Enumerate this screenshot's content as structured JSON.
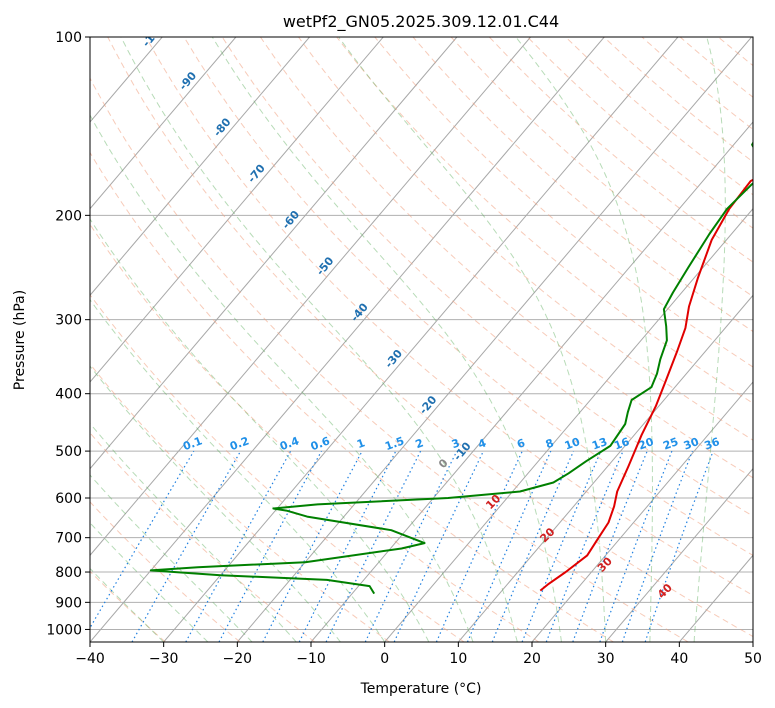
{
  "chart_data": {
    "type": "line",
    "title": "wetPf2_GN05.2025.309.12.01.C44",
    "xlabel": "Temperature (°C)",
    "ylabel": "Pressure (hPa)",
    "xlim": [
      -40,
      50
    ],
    "ylim": [
      1050,
      100
    ],
    "x_ticks": [
      -40,
      -30,
      -20,
      -10,
      0,
      10,
      20,
      30,
      40,
      50
    ],
    "x_tick_labels": [
      "−40",
      "−30",
      "−20",
      "−10",
      "0",
      "10",
      "20",
      "30",
      "40",
      "50"
    ],
    "y_ticks": [
      100,
      200,
      300,
      400,
      500,
      600,
      700,
      800,
      900,
      1000
    ],
    "y_tick_labels": [
      "100",
      "200",
      "300",
      "400",
      "500",
      "600",
      "700",
      "800",
      "900",
      "1000"
    ],
    "series": [
      {
        "name": "temperature",
        "color": "#e00000",
        "points": [
          [
            15.2,
            860
          ],
          [
            15.5,
            840
          ],
          [
            16.5,
            800
          ],
          [
            17.5,
            750
          ],
          [
            17.0,
            700
          ],
          [
            16.6,
            660
          ],
          [
            15.5,
            620
          ],
          [
            14.2,
            585
          ],
          [
            12.8,
            530
          ],
          [
            11.0,
            470
          ],
          [
            9.6,
            420
          ],
          [
            8.0,
            380
          ],
          [
            6.2,
            340
          ],
          [
            4.6,
            310
          ],
          [
            2.6,
            285
          ],
          [
            0.5,
            255
          ],
          [
            -2.0,
            220
          ],
          [
            -3.2,
            195
          ],
          [
            -3.5,
            175
          ],
          [
            -1.0,
            165
          ],
          [
            4.0,
            158
          ],
          [
            7.5,
            152
          ],
          [
            10.0,
            142
          ],
          [
            12.5,
            130
          ],
          [
            14.5,
            120
          ],
          [
            17.0,
            110
          ],
          [
            20.5,
            100
          ]
        ]
      },
      {
        "name": "dewpoint",
        "color": "#008000",
        "points": [
          [
            -7.0,
            870
          ],
          [
            -8.5,
            845
          ],
          [
            -15.0,
            825
          ],
          [
            -30.0,
            810
          ],
          [
            -40.0,
            795
          ],
          [
            -34.0,
            785
          ],
          [
            -20.0,
            770
          ],
          [
            -8.5,
            730
          ],
          [
            -6.0,
            715
          ],
          [
            -12.0,
            680
          ],
          [
            -25.0,
            645
          ],
          [
            -28.5,
            630
          ],
          [
            -30.5,
            625
          ],
          [
            -25.0,
            615
          ],
          [
            -8.0,
            600
          ],
          [
            1.0,
            585
          ],
          [
            4.5,
            565
          ],
          [
            5.5,
            545
          ],
          [
            6.5,
            520
          ],
          [
            8.0,
            490
          ],
          [
            7.5,
            450
          ],
          [
            6.5,
            430
          ],
          [
            5.6,
            410
          ],
          [
            6.8,
            390
          ],
          [
            6.0,
            370
          ],
          [
            4.8,
            350
          ],
          [
            3.5,
            325
          ],
          [
            1.8,
            308
          ],
          [
            -0.5,
            288
          ],
          [
            -1.2,
            270
          ],
          [
            -2.0,
            245
          ],
          [
            -3.0,
            215
          ],
          [
            -3.5,
            195
          ],
          [
            -3.0,
            178
          ],
          [
            -2.5,
            168
          ],
          [
            -5.0,
            160
          ],
          [
            -7.5,
            152
          ],
          [
            -8.0,
            145
          ],
          [
            -7.0,
            135
          ],
          [
            -4.5,
            122
          ],
          [
            -2.0,
            110
          ],
          [
            0.5,
            100
          ]
        ]
      }
    ],
    "mixing_ratio_labels": [
      "0.1",
      "0.2",
      "0.4",
      "0.6",
      "1",
      "1.5",
      "2",
      "3",
      "4",
      "6",
      "8",
      "10",
      "13",
      "16",
      "20",
      "25",
      "30",
      "36"
    ],
    "dry_adiabat_labels": [
      "-100",
      "-90",
      "-80",
      "-70",
      "-60",
      "-50",
      "-40",
      "-30",
      "-20",
      "-10"
    ],
    "moist_adiabat_labels": [
      "0",
      "10",
      "20",
      "30",
      "40"
    ]
  }
}
